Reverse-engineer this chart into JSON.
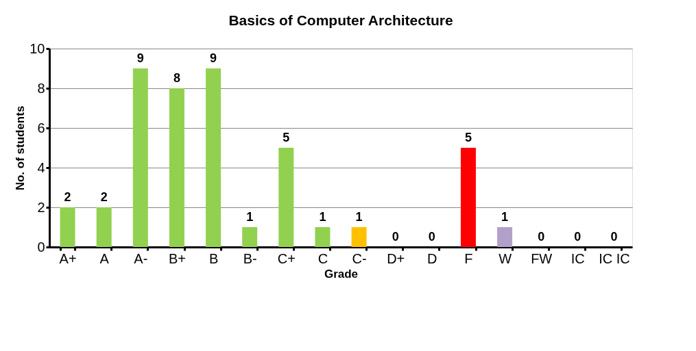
{
  "chart_data": {
    "type": "bar",
    "title": "Basics of Computer Architecture",
    "xlabel": "Grade",
    "ylabel": "No. of students",
    "categories": [
      "A+",
      "A",
      "A-",
      "B+",
      "B",
      "B-",
      "C+",
      "C",
      "C-",
      "D+",
      "D",
      "F",
      "W",
      "FW",
      "IC",
      "IC IC"
    ],
    "values": [
      2,
      2,
      9,
      8,
      9,
      1,
      5,
      1,
      1,
      0,
      0,
      5,
      1,
      0,
      0,
      0
    ],
    "colors": [
      "#92d050",
      "#92d050",
      "#92d050",
      "#92d050",
      "#92d050",
      "#92d050",
      "#92d050",
      "#92d050",
      "#ffc000",
      "#92d050",
      "#92d050",
      "#ff0000",
      "#b1a0c7",
      "#92d050",
      "#92d050",
      "#92d050"
    ],
    "ylim": [
      0,
      10
    ],
    "yticks": [
      0,
      2,
      4,
      6,
      8,
      10
    ],
    "grid": "y",
    "data_labels": true
  }
}
